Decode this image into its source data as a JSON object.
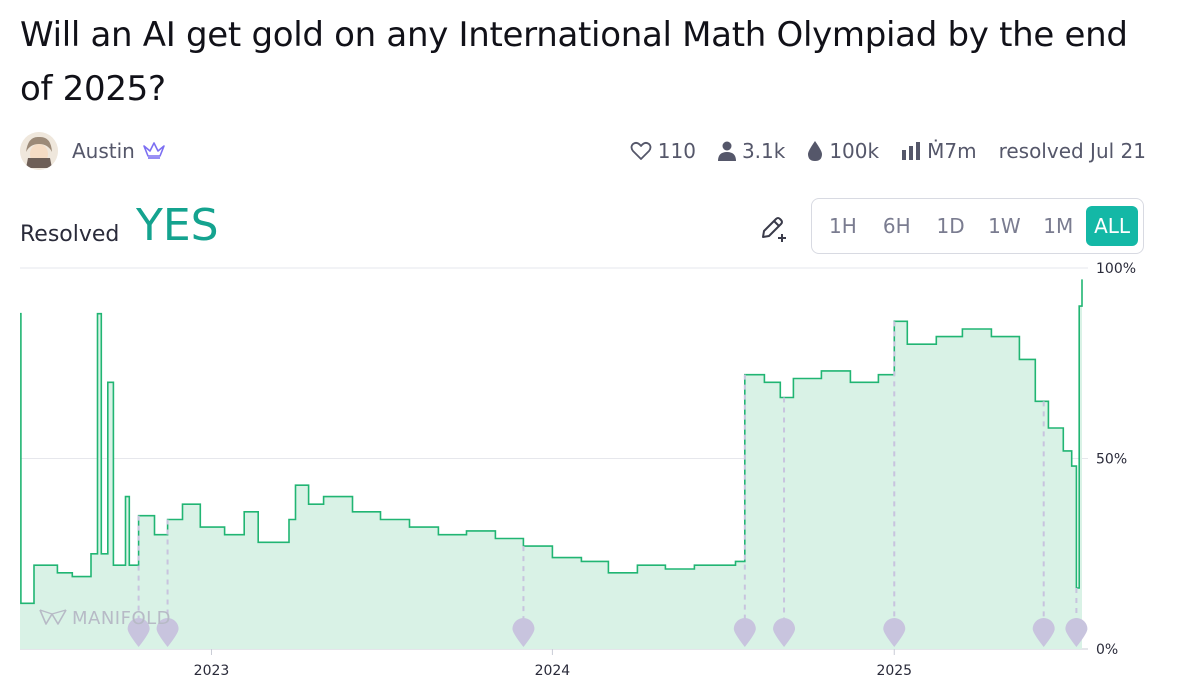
{
  "question": {
    "title": "Will an AI get gold on any International Math Olympiad by the end of 2025?"
  },
  "author": {
    "name": "Austin",
    "badge_icon": "crown-icon"
  },
  "stats": {
    "likes": "110",
    "traders": "3.1k",
    "liquidity": "100k",
    "volume": "Ṁ7m",
    "resolved": "resolved Jul 21"
  },
  "resolution": {
    "label": "Resolved",
    "value": "YES"
  },
  "time_range": {
    "options": [
      "1H",
      "6H",
      "1D",
      "1W",
      "1M",
      "ALL"
    ],
    "selected": "ALL"
  },
  "watermark": "MANIFOLD",
  "colors": {
    "line": "#21b573",
    "fill": "#d9f2e6",
    "accent": "#14b8a6",
    "yes": "#14a38f",
    "marker": "#c8c4de"
  },
  "chart_data": {
    "type": "area",
    "x_unit": "date",
    "xlim": [
      "2022-06-10",
      "2025-07-21"
    ],
    "ylim": [
      0,
      100
    ],
    "y_ticks": [
      "0%",
      "50%",
      "100%"
    ],
    "x_ticks": [
      "2023",
      "2024",
      "2025"
    ],
    "series": [
      {
        "points": [
          [
            "2022-06-10",
            88
          ],
          [
            "2022-06-11",
            12
          ],
          [
            "2022-06-25",
            22
          ],
          [
            "2022-07-20",
            20
          ],
          [
            "2022-08-05",
            19
          ],
          [
            "2022-08-25",
            25
          ],
          [
            "2022-09-01",
            88
          ],
          [
            "2022-09-05",
            25
          ],
          [
            "2022-09-12",
            70
          ],
          [
            "2022-09-18",
            22
          ],
          [
            "2022-10-01",
            40
          ],
          [
            "2022-10-05",
            22
          ],
          [
            "2022-10-15",
            35
          ],
          [
            "2022-11-01",
            30
          ],
          [
            "2022-11-15",
            34
          ],
          [
            "2022-12-01",
            38
          ],
          [
            "2022-12-20",
            32
          ],
          [
            "2023-01-15",
            30
          ],
          [
            "2023-02-05",
            36
          ],
          [
            "2023-02-20",
            28
          ],
          [
            "2023-03-10",
            28
          ],
          [
            "2023-03-25",
            34
          ],
          [
            "2023-04-01",
            43
          ],
          [
            "2023-04-15",
            38
          ],
          [
            "2023-05-01",
            40
          ],
          [
            "2023-06-01",
            36
          ],
          [
            "2023-07-01",
            34
          ],
          [
            "2023-08-01",
            32
          ],
          [
            "2023-09-01",
            30
          ],
          [
            "2023-10-01",
            31
          ],
          [
            "2023-11-01",
            29
          ],
          [
            "2023-12-01",
            27
          ],
          [
            "2024-01-01",
            24
          ],
          [
            "2024-02-01",
            23
          ],
          [
            "2024-03-01",
            20
          ],
          [
            "2024-04-01",
            22
          ],
          [
            "2024-05-01",
            21
          ],
          [
            "2024-06-01",
            22
          ],
          [
            "2024-07-15",
            23
          ],
          [
            "2024-07-25",
            72
          ],
          [
            "2024-08-15",
            70
          ],
          [
            "2024-09-01",
            66
          ],
          [
            "2024-09-15",
            71
          ],
          [
            "2024-10-15",
            73
          ],
          [
            "2024-11-15",
            70
          ],
          [
            "2024-12-15",
            72
          ],
          [
            "2025-01-01",
            86
          ],
          [
            "2025-01-15",
            80
          ],
          [
            "2025-02-15",
            82
          ],
          [
            "2025-03-15",
            84
          ],
          [
            "2025-04-15",
            82
          ],
          [
            "2025-05-15",
            76
          ],
          [
            "2025-06-01",
            65
          ],
          [
            "2025-06-15",
            58
          ],
          [
            "2025-07-01",
            52
          ],
          [
            "2025-07-10",
            48
          ],
          [
            "2025-07-15",
            16
          ],
          [
            "2025-07-18",
            90
          ],
          [
            "2025-07-21",
            97
          ]
        ]
      }
    ],
    "event_markers": [
      "2022-10-15",
      "2022-11-15",
      "2023-12-01",
      "2024-07-25",
      "2024-09-05",
      "2025-01-01",
      "2025-06-10",
      "2025-07-15"
    ]
  }
}
